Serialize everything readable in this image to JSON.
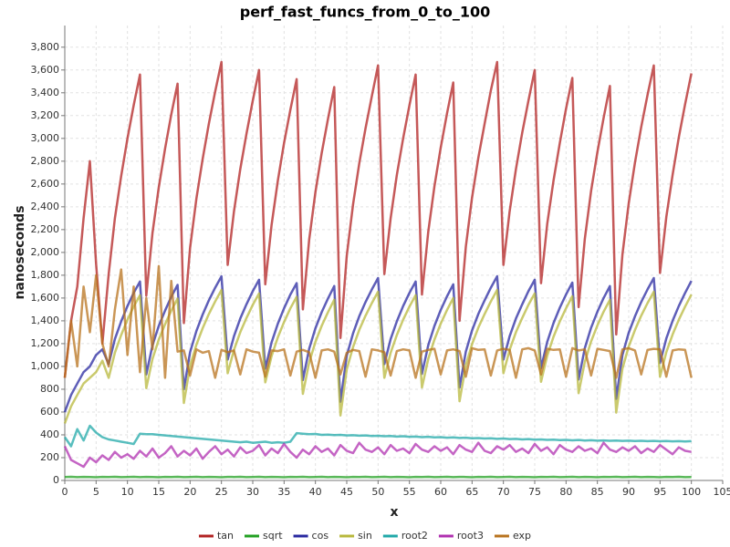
{
  "chart_data": {
    "type": "line",
    "title": "perf_fast_funcs_from_0_to_100",
    "x_label": "x",
    "y_label": "nanoseconds",
    "xlim": [
      0,
      105
    ],
    "ylim": [
      0,
      3990
    ],
    "xticks": [
      0,
      5,
      10,
      15,
      20,
      25,
      30,
      35,
      40,
      45,
      50,
      55,
      60,
      65,
      70,
      75,
      80,
      85,
      90,
      95,
      100,
      105
    ],
    "yticks": [
      0,
      200,
      400,
      600,
      800,
      {
        "value": 1000,
        "label": "1,000"
      },
      {
        "value": 1200,
        "label": "1,200"
      },
      {
        "value": 1400,
        "label": "1,400"
      },
      {
        "value": 1600,
        "label": "1,600"
      },
      {
        "value": 1800,
        "label": "1,800"
      },
      {
        "value": 2000,
        "label": "2,000"
      },
      {
        "value": 2200,
        "label": "2,200"
      },
      {
        "value": 2400,
        "label": "2,400"
      },
      {
        "value": 2600,
        "label": "2,600"
      },
      {
        "value": 2800,
        "label": "2,800"
      },
      {
        "value": 3000,
        "label": "3,000"
      },
      {
        "value": 3200,
        "label": "3,200"
      },
      {
        "value": 3400,
        "label": "3,400"
      },
      {
        "value": 3600,
        "label": "3,600"
      },
      {
        "value": 3800,
        "label": "3,800"
      }
    ],
    "grid": true,
    "legend": "bottom",
    "x": [
      0,
      1,
      2,
      3,
      4,
      5,
      6,
      7,
      8,
      9,
      10,
      11,
      12,
      13,
      14,
      15,
      16,
      17,
      18,
      19,
      20,
      21,
      22,
      23,
      24,
      25,
      26,
      27,
      28,
      29,
      30,
      31,
      32,
      33,
      34,
      35,
      36,
      37,
      38,
      39,
      40,
      41,
      42,
      43,
      44,
      45,
      46,
      47,
      48,
      49,
      50,
      51,
      52,
      53,
      54,
      55,
      56,
      57,
      58,
      59,
      60,
      61,
      62,
      63,
      64,
      65,
      66,
      67,
      68,
      69,
      70,
      71,
      72,
      73,
      74,
      75,
      76,
      77,
      78,
      79,
      80,
      81,
      82,
      83,
      84,
      85,
      86,
      87,
      88,
      89,
      90,
      91,
      92,
      93,
      94,
      95,
      96,
      97,
      98,
      99,
      100
    ],
    "series": [
      {
        "name": "tan",
        "color": "#b22222",
        "values": [
          900,
          1400,
          1700,
          2300,
          2800,
          1900,
          1200,
          1810,
          2300,
          2670,
          3000,
          3290,
          3560,
          1620,
          2170,
          2570,
          2910,
          3210,
          3480,
          1380,
          2040,
          2470,
          2820,
          3130,
          3410,
          3670,
          1890,
          2360,
          2730,
          3040,
          3330,
          3600,
          1720,
          2240,
          2630,
          2960,
          3250,
          3520,
          1500,
          2110,
          2530,
          2870,
          3170,
          3450,
          1250,
          1970,
          2420,
          2780,
          3090,
          3370,
          3640,
          1810,
          2300,
          2680,
          3000,
          3290,
          3560,
          1630,
          2180,
          2580,
          2920,
          3220,
          3490,
          1400,
          2050,
          2480,
          2830,
          3130,
          3420,
          3670,
          1890,
          2360,
          2730,
          3050,
          3330,
          3600,
          1730,
          2250,
          2630,
          2960,
          3260,
          3530,
          1520,
          2120,
          2540,
          2880,
          3180,
          3460,
          1280,
          1980,
          2430,
          2790,
          3100,
          3380,
          3640,
          1820,
          2310,
          2680,
          3010,
          3300,
          3570
        ]
      },
      {
        "name": "sqrt",
        "color": "#22a022",
        "values": [
          30,
          32,
          29,
          31,
          30,
          28,
          31,
          30,
          32,
          29,
          30,
          32,
          29,
          31,
          30,
          28,
          31,
          30,
          32,
          29,
          30,
          32,
          29,
          31,
          30,
          28,
          31,
          30,
          32,
          29,
          30,
          32,
          29,
          31,
          30,
          28,
          31,
          30,
          32,
          29,
          30,
          32,
          29,
          31,
          30,
          28,
          31,
          30,
          32,
          29,
          30,
          32,
          29,
          31,
          30,
          28,
          31,
          30,
          32,
          29,
          30,
          32,
          29,
          31,
          30,
          28,
          31,
          30,
          32,
          29,
          30,
          32,
          29,
          31,
          30,
          28,
          31,
          30,
          32,
          29,
          30,
          32,
          29,
          31,
          30,
          28,
          31,
          30,
          32,
          29,
          30,
          32,
          29,
          31,
          30,
          28,
          31,
          30,
          32,
          29,
          30
        ]
      },
      {
        "name": "cos",
        "color": "#2828a0",
        "values": [
          600,
          750,
          850,
          950,
          1000,
          1100,
          1150,
          1020,
          1240,
          1395,
          1530,
          1645,
          1745,
          930,
          1185,
          1355,
          1490,
          1610,
          1715,
          800,
          1125,
          1310,
          1455,
          1580,
          1690,
          1790,
          1060,
          1265,
          1420,
          1545,
          1660,
          1760,
          980,
          1210,
          1375,
          1510,
          1630,
          1730,
          880,
          1155,
          1335,
          1475,
          1595,
          1705,
          690,
          1095,
          1290,
          1440,
          1565,
          1675,
          1775,
          1020,
          1240,
          1395,
          1530,
          1645,
          1745,
          935,
          1185,
          1355,
          1495,
          1615,
          1720,
          815,
          1130,
          1315,
          1460,
          1580,
          1690,
          1790,
          1060,
          1265,
          1420,
          1545,
          1660,
          1760,
          985,
          1215,
          1380,
          1515,
          1630,
          1735,
          885,
          1160,
          1340,
          1480,
          1600,
          1705,
          715,
          1100,
          1295,
          1440,
          1565,
          1675,
          1775,
          1030,
          1245,
          1400,
          1530,
          1645,
          1750
        ]
      },
      {
        "name": "sin",
        "color": "#b8b83c",
        "values": [
          500,
          650,
          750,
          850,
          900,
          950,
          1050,
          900,
          1120,
          1275,
          1410,
          1525,
          1625,
          810,
          1065,
          1235,
          1370,
          1490,
          1595,
          680,
          1005,
          1190,
          1335,
          1460,
          1570,
          1670,
          940,
          1145,
          1300,
          1425,
          1540,
          1640,
          860,
          1090,
          1255,
          1390,
          1510,
          1610,
          760,
          1035,
          1215,
          1355,
          1475,
          1585,
          570,
          975,
          1170,
          1320,
          1445,
          1555,
          1655,
          900,
          1120,
          1275,
          1410,
          1525,
          1625,
          815,
          1065,
          1235,
          1375,
          1495,
          1600,
          695,
          1010,
          1195,
          1340,
          1460,
          1570,
          1670,
          940,
          1145,
          1300,
          1425,
          1540,
          1640,
          865,
          1095,
          1260,
          1395,
          1510,
          1615,
          765,
          1040,
          1220,
          1360,
          1480,
          1585,
          595,
          980,
          1175,
          1320,
          1445,
          1555,
          1655,
          910,
          1125,
          1280,
          1410,
          1525,
          1630
        ]
      },
      {
        "name": "root2",
        "color": "#20a8a8",
        "values": [
          380,
          300,
          450,
          350,
          480,
          420,
          380,
          360,
          350,
          340,
          330,
          320,
          410,
          405,
          405,
          400,
          395,
          390,
          385,
          380,
          375,
          370,
          365,
          360,
          355,
          350,
          345,
          340,
          335,
          340,
          330,
          335,
          340,
          330,
          335,
          330,
          340,
          415,
          410,
          405,
          408,
          400,
          402,
          398,
          400,
          395,
          397,
          393,
          395,
          390,
          392,
          388,
          390,
          385,
          388,
          383,
          385,
          380,
          383,
          378,
          380,
          375,
          378,
          373,
          375,
          370,
          372,
          368,
          370,
          365,
          368,
          363,
          365,
          360,
          363,
          358,
          360,
          356,
          358,
          354,
          356,
          352,
          355,
          350,
          353,
          349,
          351,
          348,
          350,
          347,
          349,
          346,
          348,
          345,
          347,
          344,
          346,
          343,
          345,
          342,
          345
        ]
      },
      {
        "name": "root3",
        "color": "#b030b0",
        "values": [
          300,
          180,
          150,
          120,
          200,
          160,
          220,
          180,
          250,
          200,
          230,
          190,
          260,
          210,
          280,
          200,
          240,
          300,
          210,
          260,
          220,
          280,
          190,
          250,
          300,
          230,
          270,
          210,
          290,
          240,
          260,
          310,
          220,
          280,
          240,
          320,
          250,
          200,
          270,
          230,
          300,
          250,
          280,
          220,
          310,
          260,
          240,
          330,
          270,
          250,
          290,
          230,
          310,
          260,
          280,
          240,
          320,
          270,
          250,
          300,
          260,
          290,
          230,
          310,
          270,
          250,
          330,
          260,
          240,
          300,
          270,
          310,
          250,
          280,
          240,
          320,
          260,
          290,
          230,
          310,
          270,
          250,
          300,
          260,
          280,
          240,
          330,
          270,
          250,
          290,
          260,
          300,
          240,
          280,
          250,
          310,
          270,
          230,
          290,
          260,
          250
        ]
      },
      {
        "name": "exp",
        "color": "#b8731e",
        "values": [
          900,
          1400,
          1000,
          1700,
          1300,
          1800,
          1200,
          1000,
          1500,
          1850,
          1100,
          1700,
          950,
          1600,
          1150,
          1880,
          900,
          1750,
          1130,
          1140,
          920,
          1150,
          1120,
          1135,
          900,
          1145,
          1125,
          1140,
          930,
          1150,
          1130,
          1120,
          910,
          1140,
          1135,
          1150,
          920,
          1130,
          1145,
          1125,
          900,
          1140,
          1150,
          1130,
          930,
          1120,
          1145,
          1135,
          910,
          1150,
          1140,
          1125,
          920,
          1135,
          1150,
          1140,
          900,
          1130,
          1145,
          1155,
          930,
          1140,
          1150,
          1135,
          910,
          1160,
          1145,
          1150,
          920,
          1140,
          1155,
          1145,
          900,
          1150,
          1160,
          1140,
          930,
          1155,
          1145,
          1150,
          910,
          1160,
          1140,
          1150,
          920,
          1155,
          1145,
          1135,
          900,
          1150,
          1160,
          1140,
          930,
          1145,
          1155,
          1150,
          910,
          1140,
          1150,
          1145,
          900
        ]
      }
    ]
  }
}
